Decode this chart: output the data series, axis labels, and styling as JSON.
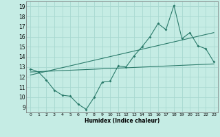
{
  "xlabel": "Humidex (Indice chaleur)",
  "xlim": [
    -0.5,
    23.5
  ],
  "ylim": [
    8.5,
    19.5
  ],
  "xticks": [
    0,
    1,
    2,
    3,
    4,
    5,
    6,
    7,
    8,
    9,
    10,
    11,
    12,
    13,
    14,
    15,
    16,
    17,
    18,
    19,
    20,
    21,
    22,
    23
  ],
  "yticks": [
    9,
    10,
    11,
    12,
    13,
    14,
    15,
    16,
    17,
    18,
    19
  ],
  "bg_color": "#c5ece4",
  "grid_color": "#a8d8d0",
  "line_color": "#2a7a6a",
  "series1_x": [
    0,
    1,
    2,
    3,
    4,
    5,
    6,
    7,
    8,
    9,
    10,
    11,
    12,
    13,
    14,
    15,
    16,
    17,
    18,
    19,
    20,
    21,
    22,
    23
  ],
  "series1_y": [
    12.8,
    12.5,
    11.7,
    10.7,
    10.2,
    10.1,
    9.3,
    8.8,
    10.0,
    11.5,
    11.6,
    13.1,
    13.0,
    14.1,
    15.0,
    16.0,
    17.3,
    16.7,
    19.1,
    15.8,
    16.4,
    15.1,
    14.8,
    13.5
  ],
  "trend1_x": [
    0,
    23
  ],
  "trend1_y": [
    12.2,
    16.4
  ],
  "trend2_x": [
    0,
    23
  ],
  "trend2_y": [
    12.5,
    13.3
  ]
}
